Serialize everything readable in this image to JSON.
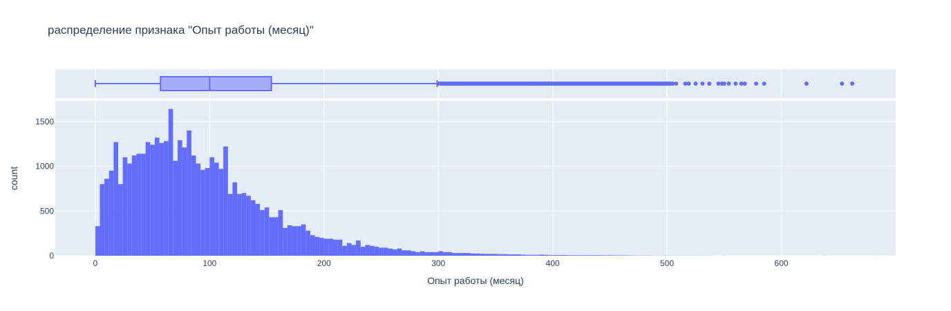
{
  "chart_data": {
    "type": "histogram",
    "title": "распределение признака \"Опыт работы (месяц)\"",
    "xlabel": "Опыт работы (месяц)",
    "ylabel": "count",
    "xlim": [
      -35,
      700
    ],
    "ylim": [
      0,
      1730
    ],
    "x_ticks": [
      0,
      100,
      200,
      300,
      400,
      500,
      600
    ],
    "y_ticks": [
      0,
      500,
      1000,
      1500
    ],
    "grid": true,
    "colors": {
      "bar": "#636efa",
      "plot_bg": "#e5ecf6",
      "grid": "#ffffff",
      "text": "#2a3f5f"
    },
    "bin_width": 4,
    "bin_start": 0,
    "counts": [
      330,
      800,
      860,
      950,
      1270,
      800,
      1100,
      1030,
      1120,
      1140,
      1140,
      1270,
      1240,
      1320,
      1260,
      1280,
      1640,
      1060,
      1290,
      1210,
      1400,
      1120,
      1030,
      960,
      980,
      1100,
      1040,
      970,
      1220,
      690,
      820,
      690,
      700,
      670,
      620,
      580,
      510,
      540,
      430,
      430,
      510,
      310,
      340,
      330,
      330,
      350,
      280,
      230,
      210,
      200,
      190,
      190,
      180,
      180,
      110,
      140,
      120,
      170,
      100,
      120,
      110,
      100,
      90,
      90,
      80,
      70,
      80,
      60,
      60,
      50,
      40,
      50,
      40,
      40,
      40,
      50,
      40,
      40,
      30,
      30,
      30,
      30,
      25,
      25,
      22,
      20,
      20,
      20,
      18,
      18,
      15,
      15,
      15,
      12,
      10,
      10,
      10,
      12,
      10,
      8,
      8,
      8,
      8,
      6,
      6,
      6,
      5,
      5,
      6,
      6,
      5,
      4,
      5,
      5,
      4,
      4,
      3,
      3,
      2,
      2,
      2,
      2,
      1,
      1,
      2,
      1,
      1,
      1,
      1,
      1,
      1,
      1,
      1,
      1,
      1,
      0,
      0,
      1,
      0,
      0,
      0,
      0,
      0,
      0,
      0,
      0,
      0,
      0,
      0,
      0,
      0,
      0,
      0,
      0,
      0,
      0,
      0,
      0,
      0,
      1,
      0,
      0,
      0,
      0,
      0,
      0,
      0,
      0,
      0,
      0,
      1
    ],
    "box": {
      "min": 0,
      "q1": 57,
      "median": 100,
      "q3": 154,
      "upper_fence": 299,
      "outliers": [
        300,
        305,
        310,
        315,
        320,
        325,
        330,
        335,
        340,
        345,
        350,
        355,
        360,
        365,
        370,
        375,
        380,
        385,
        390,
        395,
        400,
        405,
        410,
        415,
        420,
        425,
        430,
        435,
        440,
        445,
        450,
        455,
        460,
        465,
        470,
        475,
        480,
        485,
        490,
        495,
        500,
        505,
        508,
        516,
        519,
        525,
        531,
        537,
        545,
        548,
        550,
        554,
        560,
        565,
        568,
        578,
        585,
        622,
        653,
        662
      ]
    }
  }
}
